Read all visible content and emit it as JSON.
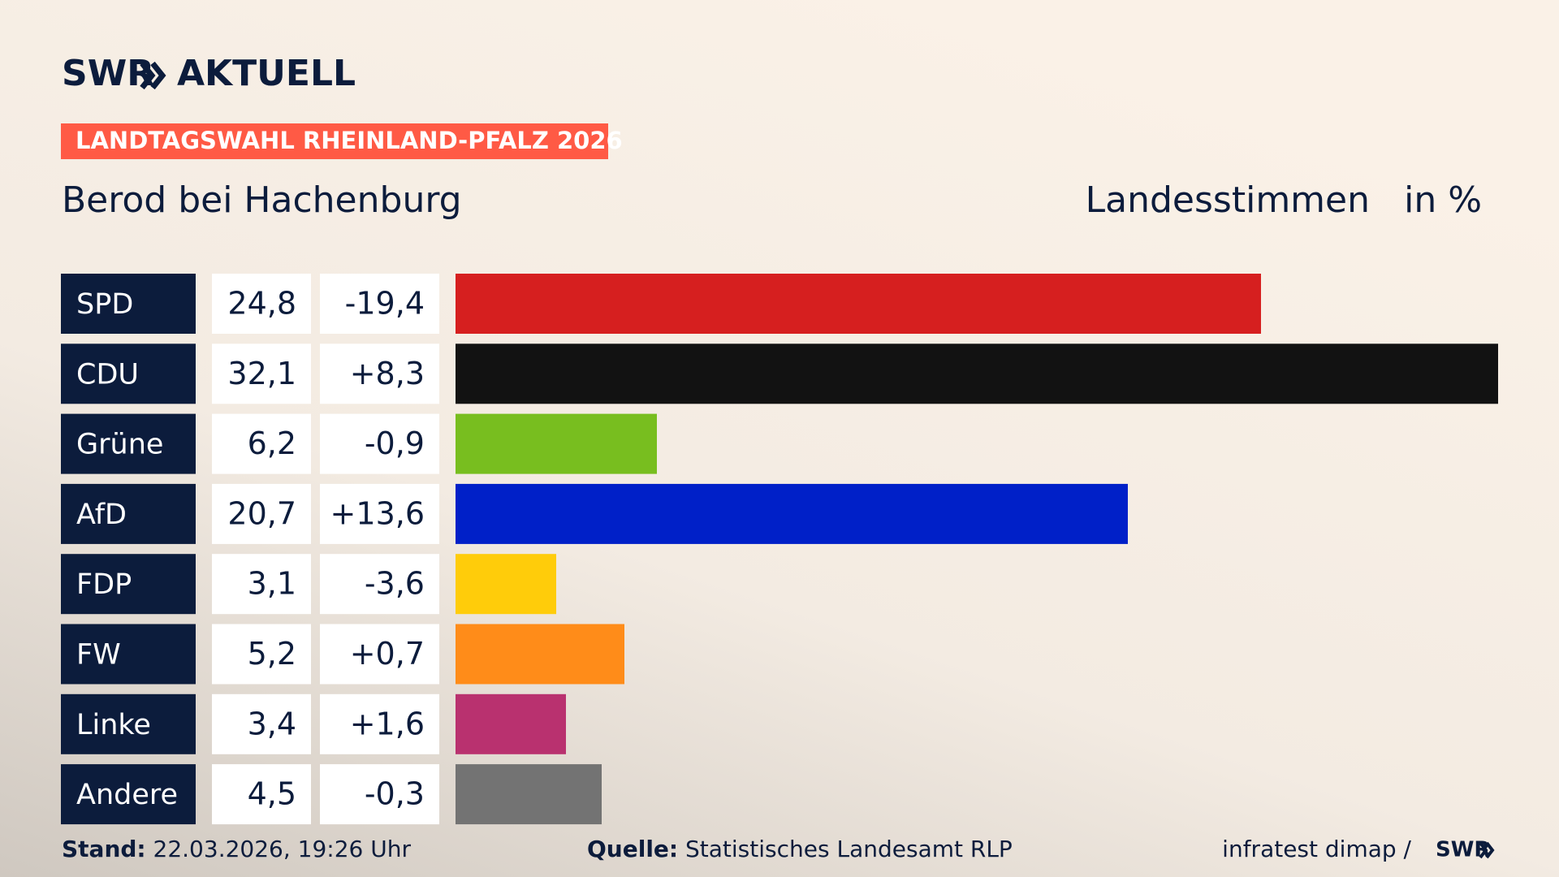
{
  "header": {
    "brand": "SWR",
    "product": "AKTUELL",
    "kicker": "LANDTAGSWAHL RHEINLAND-PFALZ 2026"
  },
  "chart_data": {
    "type": "bar",
    "orientation": "horizontal",
    "title": "Berod bei Hachenburg",
    "subtitle": "Landesstimmen",
    "unit": "in %",
    "categories": [
      "SPD",
      "CDU",
      "Grüne",
      "AfD",
      "FDP",
      "FW",
      "Linke",
      "Andere"
    ],
    "values": [
      24.8,
      32.1,
      6.2,
      20.7,
      3.1,
      5.2,
      3.4,
      4.5
    ],
    "value_labels": [
      "24,8",
      "32,1",
      "6,2",
      "20,7",
      "3,1",
      "5,2",
      "3,4",
      "4,5"
    ],
    "change_labels": [
      "-19,4",
      "+8,3",
      "-0,9",
      "+13,6",
      "-3,6",
      "+0,7",
      "+1,6",
      "-0,3"
    ],
    "colors": [
      "#d61f1f",
      "#121212",
      "#78be1f",
      "#0020c8",
      "#ffcc0a",
      "#ff8c19",
      "#b9316f",
      "#737373"
    ]
  },
  "footer": {
    "stand_label": "Stand:",
    "stand": "22.03.2026, 19:26 Uhr",
    "source_label": "Quelle:",
    "source": "Statistisches Landesamt RLP",
    "credit": "infratest dimap /",
    "brand": "SWR"
  }
}
